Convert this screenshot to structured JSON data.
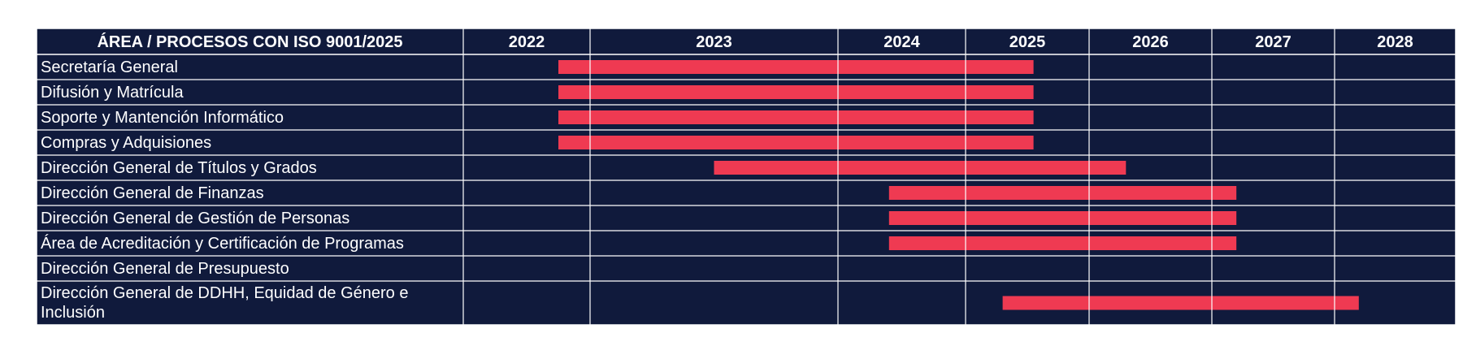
{
  "chart_data": {
    "type": "gantt",
    "header": "ÁREA / PROCESOS CON ISO 9001/2025",
    "years": [
      "2022",
      "2023",
      "2024",
      "2025",
      "2026",
      "2027",
      "2028"
    ],
    "bar_color": "#ef3a52",
    "background_color": "#101a3c",
    "rows": [
      {
        "label": "Secretaría General",
        "start": 2022.75,
        "end": 2025.55
      },
      {
        "label": "Difusión y Matrícula",
        "start": 2022.75,
        "end": 2025.55
      },
      {
        "label": "Soporte y Mantención Informático",
        "start": 2022.75,
        "end": 2025.55
      },
      {
        "label": "Compras y Adquisiones",
        "start": 2022.75,
        "end": 2025.55
      },
      {
        "label": "Dirección General de Títulos y Grados",
        "start": 2023.5,
        "end": 2026.3
      },
      {
        "label": "Dirección General de Finanzas",
        "start": 2024.4,
        "end": 2027.2
      },
      {
        "label": "Dirección General de Gestión de Personas",
        "start": 2024.4,
        "end": 2027.2
      },
      {
        "label": "Área de Acreditación y Certificación de Programas",
        "start": 2024.4,
        "end": 2027.2
      },
      {
        "label": "Dirección General de Presupuesto",
        "start": null,
        "end": null
      },
      {
        "label": "Dirección General de DDHH, Equidad de Género e Inclusión",
        "label_lines": [
          "Dirección General de DDHH, Equidad de Género e",
          "Inclusión"
        ],
        "start": 2025.3,
        "end": 2028.2
      }
    ]
  }
}
